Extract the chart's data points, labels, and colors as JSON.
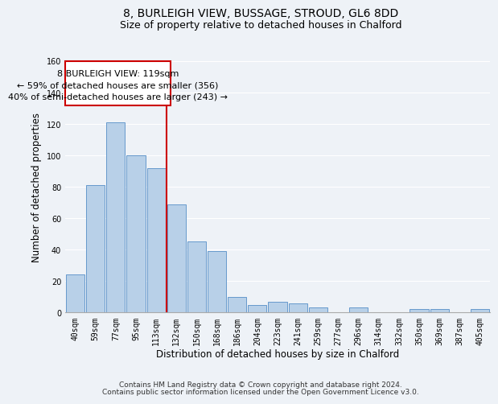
{
  "title": "8, BURLEIGH VIEW, BUSSAGE, STROUD, GL6 8DD",
  "subtitle": "Size of property relative to detached houses in Chalford",
  "xlabel": "Distribution of detached houses by size in Chalford",
  "ylabel": "Number of detached properties",
  "bar_labels": [
    "40sqm",
    "59sqm",
    "77sqm",
    "95sqm",
    "113sqm",
    "132sqm",
    "150sqm",
    "168sqm",
    "186sqm",
    "204sqm",
    "223sqm",
    "241sqm",
    "259sqm",
    "277sqm",
    "296sqm",
    "314sqm",
    "332sqm",
    "350sqm",
    "369sqm",
    "387sqm",
    "405sqm"
  ],
  "bar_values": [
    24,
    81,
    121,
    100,
    92,
    69,
    45,
    39,
    10,
    5,
    7,
    6,
    3,
    0,
    3,
    0,
    0,
    2,
    2,
    0,
    2
  ],
  "bar_color": "#b8d0e8",
  "bar_edge_color": "#6699cc",
  "vline_x": 4.5,
  "vline_color": "#cc0000",
  "ylim": [
    0,
    160
  ],
  "yticks": [
    0,
    20,
    40,
    60,
    80,
    100,
    120,
    140,
    160
  ],
  "annotation_line1": "8 BURLEIGH VIEW: 119sqm",
  "annotation_line2": "← 59% of detached houses are smaller (356)",
  "annotation_line3": "40% of semi-detached houses are larger (243) →",
  "footer_line1": "Contains HM Land Registry data © Crown copyright and database right 2024.",
  "footer_line2": "Contains public sector information licensed under the Open Government Licence v3.0.",
  "background_color": "#eef2f7",
  "grid_color": "#ffffff",
  "title_fontsize": 10,
  "subtitle_fontsize": 9,
  "axis_label_fontsize": 8.5,
  "tick_fontsize": 7,
  "annotation_fontsize": 8,
  "footer_fontsize": 6.5
}
